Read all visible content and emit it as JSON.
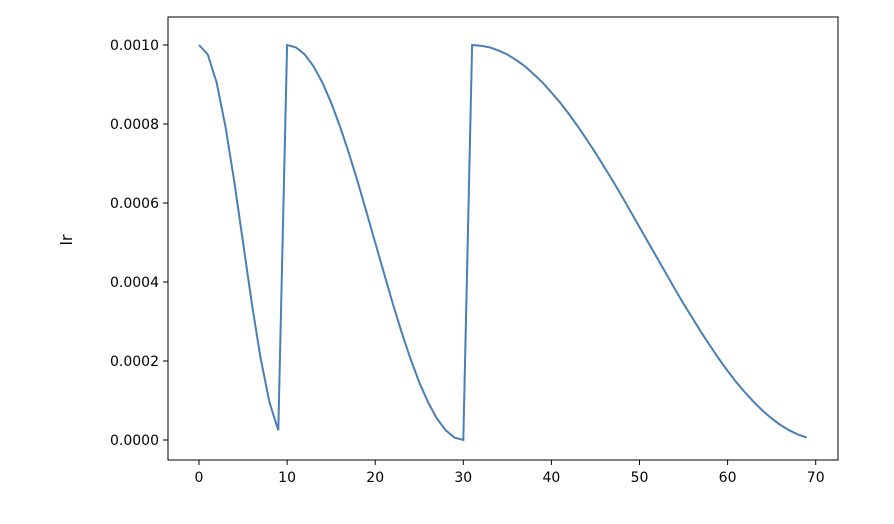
{
  "chart_data": {
    "type": "line",
    "title": "",
    "xlabel": "",
    "ylabel": "lr",
    "xlim": [
      -3.45,
      72.45
    ],
    "ylim": [
      -5e-05,
      0.00105
    ],
    "xticks": [
      0,
      10,
      20,
      30,
      40,
      50,
      60,
      70
    ],
    "xtick_labels": [
      "0",
      "10",
      "20",
      "30",
      "40",
      "50",
      "60",
      "70"
    ],
    "yticks": [
      0,
      0.0002,
      0.0004,
      0.0006,
      0.0008,
      0.001
    ],
    "ytick_labels": [
      "0.0000",
      "0.0002",
      "0.0004",
      "0.0006",
      "0.0008",
      "0.0010"
    ],
    "grid": false,
    "line_color": "#4a7fb5",
    "series": [
      {
        "x": [
          0,
          1,
          2,
          3,
          4,
          5,
          6,
          7,
          8,
          9,
          10,
          11,
          12,
          13,
          14,
          15,
          16,
          17,
          18,
          19,
          20,
          21,
          22,
          23,
          24,
          25,
          26,
          27,
          28,
          29,
          30,
          31,
          32,
          33,
          34,
          35,
          36,
          37,
          38,
          39,
          40,
          41,
          42,
          43,
          44,
          45,
          46,
          47,
          48,
          49,
          50,
          51,
          52,
          53,
          54,
          55,
          56,
          57,
          58,
          59,
          60,
          61,
          62,
          63,
          64,
          65,
          66,
          67,
          68,
          69
        ],
        "values": [
          0.001,
          0.000976,
          0.000905,
          0.000794,
          0.000655,
          0.0005,
          0.000345,
          0.000206,
          9.55e-05,
          2.45e-05,
          0.001,
          0.000994,
          0.000976,
          0.000946,
          0.000905,
          0.000854,
          0.000794,
          0.000727,
          0.000655,
          0.000578,
          0.0005,
          0.000422,
          0.000345,
          0.000273,
          0.000206,
          0.000146,
          9.55e-05,
          5.45e-05,
          2.45e-05,
          6.2e-06,
          0.0,
          0.001,
          0.000998,
          0.000994,
          0.000986,
          0.000976,
          0.000962,
          0.000946,
          0.000926,
          0.000905,
          0.00088,
          0.000854,
          0.000825,
          0.000794,
          0.000761,
          0.000727,
          0.000691,
          0.000655,
          0.000617,
          0.000578,
          0.000539,
          0.0005,
          0.000461,
          0.000422,
          0.000383,
          0.000345,
          0.000309,
          0.000273,
          0.000239,
          0.000206,
          0.000175,
          0.000146,
          0.00012,
          9.55e-05,
          7.38e-05,
          5.45e-05,
          3.8e-05,
          2.45e-05,
          1.38e-05,
          6.2e-06
        ]
      }
    ]
  }
}
